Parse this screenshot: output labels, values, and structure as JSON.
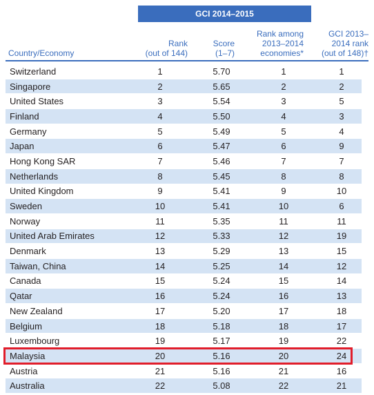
{
  "table": {
    "group_header": "GCI 2014–2015",
    "columns": {
      "country": "Country/Economy",
      "rank_line1": "Rank",
      "rank_line2": "(out of 144)",
      "score_line1": "Score",
      "score_line2": "(1–7)",
      "among_line1": "Rank among",
      "among_line2": "2013–2014",
      "among_line3": "economies*",
      "prev_line1": "GCI 2013–",
      "prev_line2": "2014 rank",
      "prev_line3": "(out of 148)†"
    },
    "rows": [
      {
        "country": "Switzerland",
        "rank": "1",
        "score": "5.70",
        "among": "1",
        "prev": "1"
      },
      {
        "country": "Singapore",
        "rank": "2",
        "score": "5.65",
        "among": "2",
        "prev": "2"
      },
      {
        "country": "United States",
        "rank": "3",
        "score": "5.54",
        "among": "3",
        "prev": "5"
      },
      {
        "country": "Finland",
        "rank": "4",
        "score": "5.50",
        "among": "4",
        "prev": "3"
      },
      {
        "country": "Germany",
        "rank": "5",
        "score": "5.49",
        "among": "5",
        "prev": "4"
      },
      {
        "country": "Japan",
        "rank": "6",
        "score": "5.47",
        "among": "6",
        "prev": "9"
      },
      {
        "country": "Hong Kong SAR",
        "rank": "7",
        "score": "5.46",
        "among": "7",
        "prev": "7"
      },
      {
        "country": "Netherlands",
        "rank": "8",
        "score": "5.45",
        "among": "8",
        "prev": "8"
      },
      {
        "country": "United Kingdom",
        "rank": "9",
        "score": "5.41",
        "among": "9",
        "prev": "10"
      },
      {
        "country": "Sweden",
        "rank": "10",
        "score": "5.41",
        "among": "10",
        "prev": "6"
      },
      {
        "country": "Norway",
        "rank": "11",
        "score": "5.35",
        "among": "11",
        "prev": "11"
      },
      {
        "country": "United Arab Emirates",
        "rank": "12",
        "score": "5.33",
        "among": "12",
        "prev": "19"
      },
      {
        "country": "Denmark",
        "rank": "13",
        "score": "5.29",
        "among": "13",
        "prev": "15"
      },
      {
        "country": "Taiwan, China",
        "rank": "14",
        "score": "5.25",
        "among": "14",
        "prev": "12"
      },
      {
        "country": "Canada",
        "rank": "15",
        "score": "5.24",
        "among": "15",
        "prev": "14"
      },
      {
        "country": "Qatar",
        "rank": "16",
        "score": "5.24",
        "among": "16",
        "prev": "13"
      },
      {
        "country": "New Zealand",
        "rank": "17",
        "score": "5.20",
        "among": "17",
        "prev": "18"
      },
      {
        "country": "Belgium",
        "rank": "18",
        "score": "5.18",
        "among": "18",
        "prev": "17"
      },
      {
        "country": "Luxembourg",
        "rank": "19",
        "score": "5.17",
        "among": "19",
        "prev": "22"
      },
      {
        "country": "Malaysia",
        "rank": "20",
        "score": "5.16",
        "among": "20",
        "prev": "24"
      },
      {
        "country": "Austria",
        "rank": "21",
        "score": "5.16",
        "among": "21",
        "prev": "16"
      },
      {
        "country": "Australia",
        "rank": "22",
        "score": "5.08",
        "among": "22",
        "prev": "21"
      }
    ]
  },
  "colors": {
    "header_blue": "#3a6dbd",
    "row_alt": "#d4e3f4",
    "highlight_red": "#e11d2a"
  }
}
